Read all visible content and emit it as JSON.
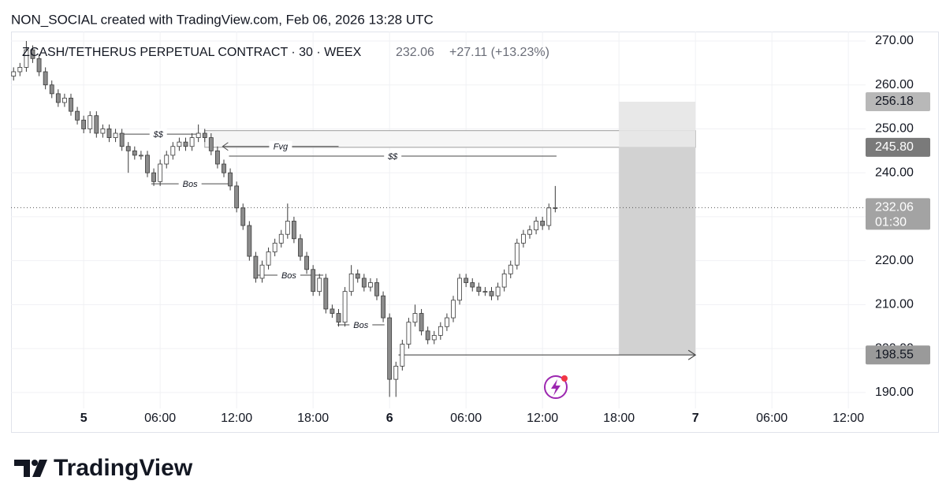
{
  "header": {
    "attribution": "NON_SOCIAL created with TradingView.com, Feb 06, 2026 13:28 UTC",
    "logo": "TradingView"
  },
  "chart_data": {
    "type": "candlestick",
    "title": "ZCASH/TETHERUS PERPETUAL CONTRACT · 30 · WEEX",
    "last_value": 232.06,
    "change": "+27.11 (+13.23%)",
    "x": [
      -5.5,
      -5,
      -4.5,
      -4,
      -3.5,
      -3,
      -2.5,
      -2,
      -1.5,
      -1,
      -0.5,
      0,
      0.5,
      1,
      1.5,
      2,
      2.5,
      3,
      3.5,
      4,
      4.5,
      5,
      5.5,
      6,
      6.5,
      7,
      7.5,
      8,
      8.5,
      9,
      9.5,
      10,
      10.5,
      11,
      11.5,
      12,
      12.5,
      13,
      13.5,
      14,
      14.5,
      15,
      15.5,
      16,
      16.5,
      17,
      17.5,
      18,
      18.5,
      19,
      19.5,
      20,
      20.5,
      21,
      21.5,
      22,
      22.5,
      23,
      23.5,
      24,
      24.5,
      25,
      25.5,
      26,
      26.5,
      27,
      27.5,
      28,
      28.5,
      29,
      29.5,
      30,
      30.5,
      31,
      31.5,
      32,
      32.5,
      33,
      33.5,
      34,
      34.5,
      35,
      35.5,
      36,
      36.5,
      37
    ],
    "open": [
      262,
      263,
      264,
      268,
      266,
      263,
      260,
      258,
      256,
      257,
      254,
      252,
      250,
      253,
      249,
      250,
      248,
      249,
      246,
      245,
      244,
      244,
      240,
      238,
      242,
      244,
      246,
      247,
      246,
      248,
      249,
      248,
      245,
      242,
      240,
      237,
      232,
      228,
      221,
      216,
      219,
      222,
      224,
      226,
      229,
      225,
      221,
      218,
      213,
      216,
      209,
      208,
      206,
      213,
      217,
      216,
      214,
      215,
      212,
      207,
      193,
      196,
      201,
      206,
      208,
      204,
      202,
      203,
      205,
      207,
      211,
      216,
      215,
      214,
      213,
      213,
      212,
      214,
      217,
      219,
      224,
      226,
      227,
      229,
      228,
      232
    ],
    "high": [
      264,
      265,
      270,
      269,
      267,
      264,
      261,
      259,
      258,
      258,
      255,
      253,
      254,
      254,
      251,
      251,
      250,
      250,
      247,
      246,
      245,
      245,
      241,
      243,
      245,
      247,
      248,
      248,
      249,
      251,
      250,
      249,
      246,
      243,
      241,
      238,
      233,
      229,
      222,
      220,
      223,
      225,
      227,
      233,
      230,
      226,
      222,
      219,
      217,
      217,
      210,
      209,
      214,
      219,
      218,
      217,
      216,
      216,
      213,
      208,
      197,
      202,
      207,
      210,
      209,
      205,
      204,
      206,
      208,
      212,
      217,
      217,
      216,
      215,
      214,
      214,
      215,
      218,
      220,
      225,
      227,
      228,
      230,
      230,
      233,
      237
    ],
    "low": [
      261,
      262,
      263,
      265,
      262,
      259,
      257,
      255,
      255,
      253,
      251,
      249,
      249,
      248,
      248,
      247,
      247,
      245,
      240,
      243,
      243,
      239,
      237,
      237,
      241,
      243,
      245,
      245,
      245,
      247,
      247,
      244,
      241,
      239,
      236,
      231,
      227,
      220,
      215,
      215,
      218,
      221,
      223,
      225,
      224,
      220,
      217,
      212,
      212,
      208,
      207,
      205,
      205,
      212,
      215,
      213,
      213,
      211,
      206,
      189,
      189,
      195,
      200,
      205,
      203,
      201,
      201,
      202,
      204,
      206,
      210,
      214,
      213,
      212,
      212,
      211,
      211,
      213,
      216,
      218,
      223,
      225,
      226,
      227,
      227,
      231
    ],
    "close": [
      263,
      264,
      268,
      266,
      263,
      260,
      258,
      256,
      257,
      254,
      252,
      250,
      253,
      249,
      250,
      248,
      249,
      246,
      245,
      244,
      244,
      240,
      238,
      242,
      244,
      246,
      247,
      246,
      248,
      249,
      248,
      245,
      242,
      240,
      237,
      232,
      228,
      221,
      216,
      219,
      222,
      224,
      226,
      229,
      225,
      221,
      218,
      213,
      216,
      209,
      208,
      206,
      213,
      217,
      216,
      214,
      215,
      212,
      207,
      193,
      196,
      201,
      206,
      208,
      204,
      202,
      203,
      205,
      207,
      211,
      216,
      215,
      214,
      213,
      213,
      212,
      214,
      217,
      219,
      224,
      226,
      227,
      229,
      228,
      232,
      232.06
    ],
    "up_color": "#ffffff",
    "down_color": "#8c8c8c",
    "border_color": "#3a3a3a",
    "xlim": [
      -5.7,
      61.35
    ],
    "xticks": [
      {
        "value": 0,
        "label": "5"
      },
      {
        "value": 6,
        "label": "06:00"
      },
      {
        "value": 12,
        "label": "12:00"
      },
      {
        "value": 18,
        "label": "18:00"
      },
      {
        "value": 24,
        "label": "6"
      },
      {
        "value": 30,
        "label": "06:00"
      },
      {
        "value": 36,
        "label": "12:00"
      },
      {
        "value": 42,
        "label": "18:00"
      },
      {
        "value": 48,
        "label": "7"
      },
      {
        "value": 54,
        "label": "06:00"
      },
      {
        "value": 60,
        "label": "12:00"
      }
    ],
    "ylim": [
      181.0,
      272.15
    ],
    "yticks": [
      {
        "value": 190,
        "label": "190.00"
      },
      {
        "value": 200,
        "label": "200.00"
      },
      {
        "value": 210,
        "label": "210.00"
      },
      {
        "value": 220,
        "label": "220.00"
      },
      {
        "value": 230,
        "label": "230.00"
      },
      {
        "value": 240,
        "label": "240.00"
      },
      {
        "value": 250,
        "label": "250.00"
      },
      {
        "value": 260,
        "label": "260.00"
      },
      {
        "value": 270,
        "label": "270.00"
      }
    ],
    "grid": true,
    "fvg_zone": {
      "top": 249.6,
      "bottom": 245.8,
      "x": [
        9.5,
        48
      ]
    },
    "position": {
      "x": [
        42,
        48
      ],
      "stop": 256.18,
      "entry": 245.8,
      "target": 198.55,
      "arrow_start": 24.7
    },
    "annotations": [
      {
        "text": "$$",
        "y": 248.8,
        "x": [
          2.8,
          8.9
        ]
      },
      {
        "text": "Fvg",
        "y": 246.0,
        "x": [
          10.9,
          20.0
        ],
        "arrow": "left"
      },
      {
        "text": "$$",
        "y": 243.8,
        "x": [
          11.4,
          37.1
        ]
      },
      {
        "text": "Bos",
        "y": 237.5,
        "x": [
          5.3,
          11.4
        ]
      },
      {
        "text": "Bos",
        "y": 216.7,
        "x": [
          13.4,
          18.8
        ]
      },
      {
        "text": "Bos",
        "y": 205.4,
        "x": [
          19.9,
          23.6
        ]
      }
    ],
    "price_labels": [
      {
        "value": 256.18,
        "label": "256.18",
        "color": "#b8b8b8",
        "text_color": "#131722"
      },
      {
        "value": 245.8,
        "label": "245.80",
        "color": "#7a7a7a",
        "text_color": "#ffffff"
      },
      {
        "value": 232.06,
        "label": "232.06",
        "color": "#a3a3a3",
        "text_color": "#ffffff",
        "countdown": "01:30"
      },
      {
        "value": 198.55,
        "label": "198.55",
        "color": "#9a9a9a",
        "text_color": "#131722"
      }
    ]
  }
}
